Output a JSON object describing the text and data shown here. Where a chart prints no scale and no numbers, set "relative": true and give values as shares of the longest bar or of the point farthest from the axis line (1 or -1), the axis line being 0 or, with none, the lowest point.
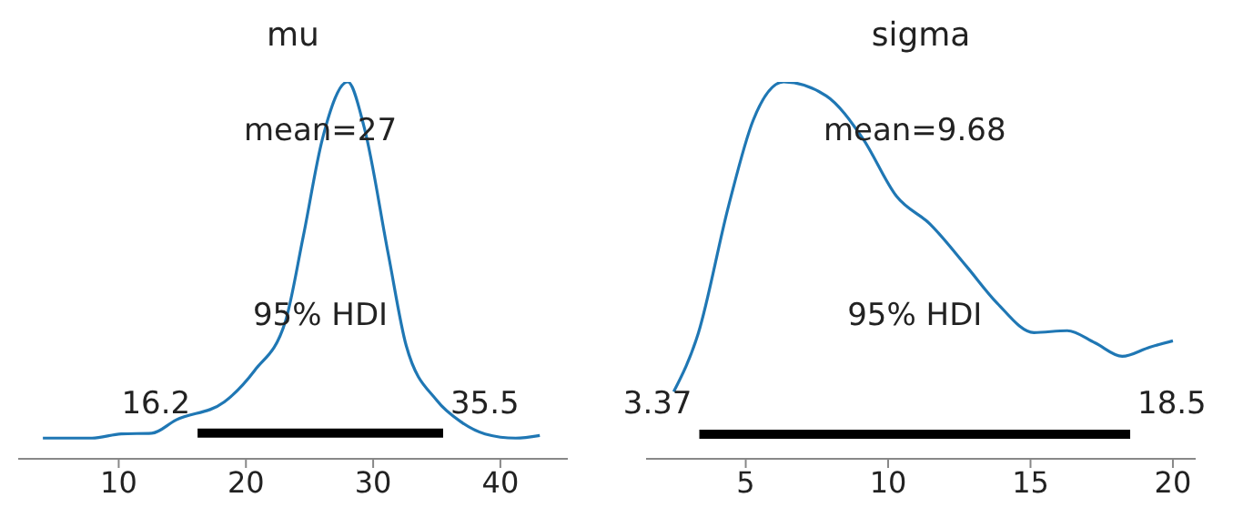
{
  "chart_data": [
    {
      "type": "line",
      "title": "mu",
      "relative": true,
      "marker": "none",
      "xlim": [
        2.1,
        45.3
      ],
      "xticks": [
        10,
        20,
        30,
        40
      ],
      "series": [
        {
          "color": "#1f77b4",
          "x": [
            4.04,
            7.9,
            10.2,
            12.6,
            14.5,
            18.3,
            20.7,
            23.1,
            24.5,
            26.0,
            28.0,
            29.3,
            31.2,
            32.6,
            35.0,
            36.9,
            38.8,
            41.2,
            43.1
          ],
          "values": [
            0.055,
            0.055,
            0.066,
            0.068,
            0.103,
            0.151,
            0.235,
            0.364,
            0.589,
            0.847,
            1.0,
            0.879,
            0.541,
            0.3,
            0.155,
            0.098,
            0.066,
            0.055,
            0.062
          ]
        },
        {
          "color": "#000000",
          "x": [
            16.2,
            35.5
          ],
          "values": [
            0.068,
            0.068
          ]
        }
      ],
      "annotations": [
        "mean=27",
        "95% HDI",
        "16.2",
        "35.5"
      ]
    },
    {
      "type": "line",
      "title": "sigma",
      "relative": true,
      "marker": "none",
      "xlim": [
        1.5,
        20.8
      ],
      "xticks": [
        5,
        10,
        15,
        20
      ],
      "series": [
        {
          "color": "#1f77b4",
          "x": [
            2.47,
            3.33,
            4.4,
            5.26,
            6.33,
            7.83,
            9.11,
            10.3,
            11.47,
            12.76,
            13.83,
            15.12,
            16.29,
            17.26,
            18.22,
            19.18,
            20.0
          ],
          "values": [
            0.178,
            0.332,
            0.672,
            0.898,
            1.0,
            0.963,
            0.85,
            0.696,
            0.623,
            0.51,
            0.413,
            0.335,
            0.34,
            0.308,
            0.272,
            0.296,
            0.313
          ]
        },
        {
          "color": "#000000",
          "x": [
            3.37,
            18.5
          ],
          "values": [
            0.065,
            0.065
          ]
        }
      ],
      "annotations": [
        "mean=9.68",
        "95% HDI",
        "3.37",
        "18.5"
      ]
    }
  ]
}
